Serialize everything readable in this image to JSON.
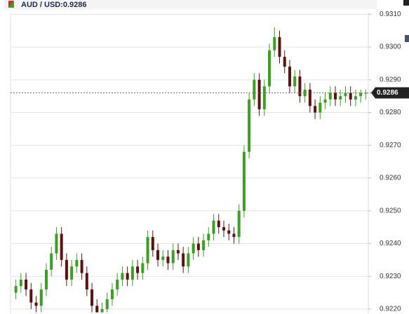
{
  "chart_data": {
    "type": "candlestick",
    "title": "AUD / USD:0.9286",
    "last_price": {
      "value": 0.9286,
      "label": "0.9286"
    },
    "up_color": "#3c9e22",
    "down_color": "#5c1212",
    "open": [
      0.9225,
      0.9227,
      0.9229,
      0.9226,
      0.9222,
      0.9221,
      0.9226,
      0.9232,
      0.9237,
      0.9243,
      0.9235,
      0.9229,
      0.9233,
      0.9235,
      0.9231,
      0.9226,
      0.9221,
      0.9219,
      0.922,
      0.9223,
      0.9226,
      0.9229,
      0.9231,
      0.9229,
      0.9233,
      0.9231,
      0.9234,
      0.9242,
      0.9238,
      0.9235,
      0.9236,
      0.9234,
      0.9238,
      0.9237,
      0.9233,
      0.9237,
      0.924,
      0.9238,
      0.9241,
      0.9243,
      0.9247,
      0.9245,
      0.9244,
      0.9243,
      0.9242,
      0.925,
      0.9268,
      0.9284,
      0.929,
      0.9281,
      0.9288,
      0.9299,
      0.9303,
      0.9297,
      0.9294,
      0.9288,
      0.9291,
      0.9285,
      0.9287,
      0.9282,
      0.928,
      0.9283,
      0.9284,
      0.9286,
      0.9284,
      0.9285,
      0.9286,
      0.9284,
      0.9285,
      0.9286
    ],
    "high": [
      0.9229,
      0.9231,
      0.9231,
      0.9228,
      0.9224,
      0.9228,
      0.9234,
      0.9239,
      0.9245,
      0.9245,
      0.9237,
      0.9235,
      0.9237,
      0.9237,
      0.9233,
      0.9228,
      0.9223,
      0.9222,
      0.9225,
      0.9228,
      0.9231,
      0.9233,
      0.9233,
      0.9235,
      0.9235,
      0.9236,
      0.9244,
      0.9244,
      0.924,
      0.9238,
      0.9238,
      0.924,
      0.924,
      0.9239,
      0.9239,
      0.9242,
      0.9242,
      0.9243,
      0.9245,
      0.9249,
      0.9249,
      0.9247,
      0.9246,
      0.9245,
      0.9252,
      0.927,
      0.9286,
      0.9292,
      0.9292,
      0.929,
      0.9301,
      0.9306,
      0.9305,
      0.9299,
      0.9296,
      0.9293,
      0.9293,
      0.9289,
      0.9289,
      0.9284,
      0.9285,
      0.9286,
      0.9288,
      0.9288,
      0.9287,
      0.9288,
      0.9288,
      0.9287,
      0.9287,
      0.9287
    ],
    "low": [
      0.9223,
      0.9225,
      0.9224,
      0.922,
      0.9219,
      0.9219,
      0.9224,
      0.923,
      0.9235,
      0.9233,
      0.9227,
      0.9227,
      0.9231,
      0.9229,
      0.9224,
      0.9219,
      0.9219,
      0.9219,
      0.9219,
      0.9221,
      0.9224,
      0.9227,
      0.9227,
      0.9227,
      0.9229,
      0.9229,
      0.9232,
      0.9236,
      0.9233,
      0.9233,
      0.9232,
      0.9232,
      0.9235,
      0.9231,
      0.9231,
      0.9235,
      0.9236,
      0.9236,
      0.9239,
      0.9241,
      0.9243,
      0.9242,
      0.9241,
      0.924,
      0.924,
      0.9248,
      0.9266,
      0.9282,
      0.9279,
      0.9279,
      0.9286,
      0.9297,
      0.9295,
      0.9292,
      0.9286,
      0.9286,
      0.9283,
      0.9283,
      0.928,
      0.9278,
      0.9278,
      0.9281,
      0.9282,
      0.9282,
      0.9282,
      0.9283,
      0.9282,
      0.9282,
      0.9283,
      0.9284
    ],
    "close": [
      0.9227,
      0.9229,
      0.9226,
      0.9222,
      0.9221,
      0.9226,
      0.9232,
      0.9237,
      0.9243,
      0.9235,
      0.9229,
      0.9233,
      0.9235,
      0.9231,
      0.9226,
      0.9221,
      0.9219,
      0.922,
      0.9223,
      0.9226,
      0.9229,
      0.9231,
      0.9229,
      0.9233,
      0.9231,
      0.9234,
      0.9242,
      0.9238,
      0.9235,
      0.9236,
      0.9234,
      0.9238,
      0.9237,
      0.9233,
      0.9237,
      0.924,
      0.9238,
      0.9241,
      0.9243,
      0.9247,
      0.9245,
      0.9244,
      0.9243,
      0.9242,
      0.925,
      0.9268,
      0.9284,
      0.929,
      0.9281,
      0.9288,
      0.9299,
      0.9303,
      0.9297,
      0.9294,
      0.9288,
      0.9291,
      0.9285,
      0.9287,
      0.9282,
      0.928,
      0.9283,
      0.9284,
      0.9286,
      0.9284,
      0.9285,
      0.9286,
      0.9284,
      0.9285,
      0.9286,
      0.9286
    ],
    "ylim": [
      0.92185,
      0.93105
    ],
    "yticks": [
      {
        "value": 0.922,
        "label": "0.9220"
      },
      {
        "value": 0.923,
        "label": "0.9230"
      },
      {
        "value": 0.924,
        "label": "0.9240"
      },
      {
        "value": 0.925,
        "label": "0.9250"
      },
      {
        "value": 0.926,
        "label": "0.9260"
      },
      {
        "value": 0.927,
        "label": "0.9270"
      },
      {
        "value": 0.928,
        "label": "0.9280"
      },
      {
        "value": 0.929,
        "label": "0.9290"
      },
      {
        "value": 0.93,
        "label": "0.9300"
      },
      {
        "value": 0.931,
        "label": "0.9310"
      }
    ],
    "grid": true
  }
}
